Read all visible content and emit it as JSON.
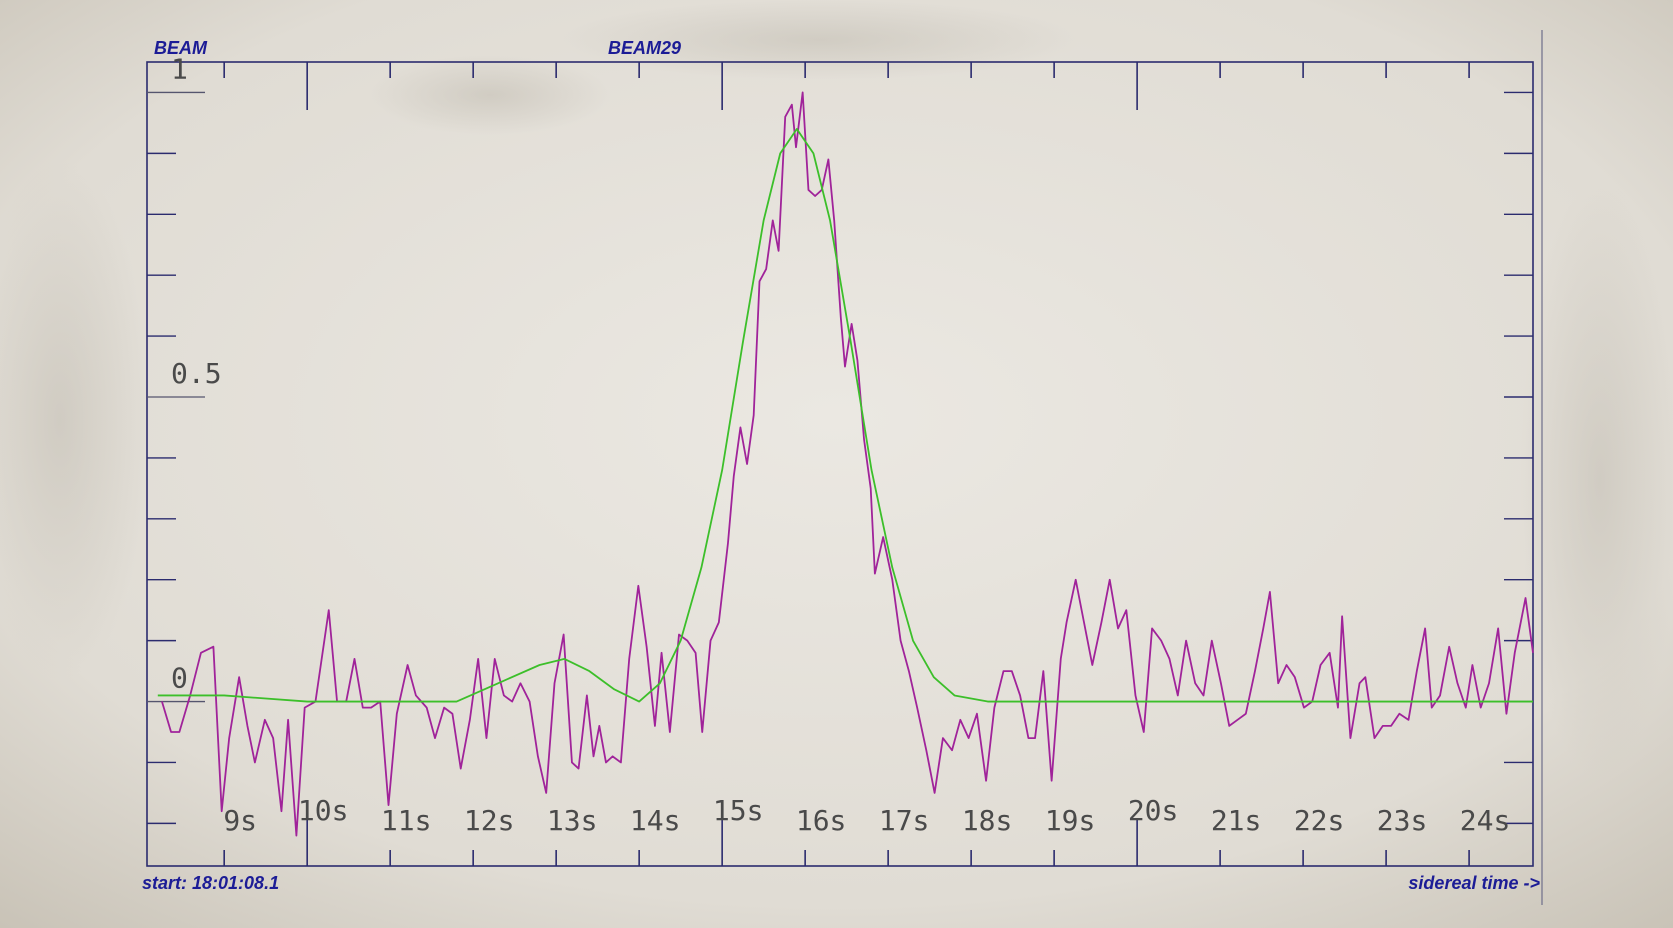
{
  "chart_data": {
    "type": "line",
    "title": "BEAM",
    "subtitle": "BEAM29",
    "start_label": "start: 18:01:08.1",
    "x_label": "sidereal time ->",
    "xlim": [
      8.07,
      24.77
    ],
    "ylim": [
      -0.27,
      1.05
    ],
    "xticks": [
      {
        "value": 9,
        "label": "9s"
      },
      {
        "value": 10,
        "label": "10s"
      },
      {
        "value": 11,
        "label": "11s"
      },
      {
        "value": 12,
        "label": "12s"
      },
      {
        "value": 13,
        "label": "13s"
      },
      {
        "value": 14,
        "label": "14s"
      },
      {
        "value": 15,
        "label": "15s"
      },
      {
        "value": 16,
        "label": "16s"
      },
      {
        "value": 17,
        "label": "17s"
      },
      {
        "value": 18,
        "label": "18s"
      },
      {
        "value": 19,
        "label": "19s"
      },
      {
        "value": 20,
        "label": "20s"
      },
      {
        "value": 21,
        "label": "21s"
      },
      {
        "value": 22,
        "label": "22s"
      },
      {
        "value": 23,
        "label": "23s"
      },
      {
        "value": 24,
        "label": "24s"
      }
    ],
    "yticks": [
      0,
      0.5,
      1
    ],
    "yminorticks": [
      -0.2,
      -0.1,
      0.1,
      0.2,
      0.3,
      0.4,
      0.6,
      0.7,
      0.8,
      0.9
    ],
    "frame_color": "#2b2b6e",
    "series": [
      {
        "color": "#a0239a",
        "x": [
          8.25,
          8.36,
          8.46,
          8.59,
          8.72,
          8.87,
          8.97,
          9.06,
          9.18,
          9.28,
          9.37,
          9.49,
          9.59,
          9.69,
          9.77,
          9.87,
          9.97,
          10.1,
          10.26,
          10.36,
          10.47,
          10.57,
          10.67,
          10.77,
          10.88,
          10.98,
          11.08,
          11.21,
          11.31,
          11.44,
          11.54,
          11.65,
          11.75,
          11.85,
          11.96,
          12.06,
          12.16,
          12.26,
          12.37,
          12.47,
          12.57,
          12.68,
          12.78,
          12.88,
          12.98,
          13.09,
          13.19,
          13.27,
          13.37,
          13.45,
          13.52,
          13.6,
          13.68,
          13.78,
          13.88,
          13.99,
          14.09,
          14.19,
          14.27,
          14.37,
          14.48,
          14.58,
          14.68,
          14.76,
          14.86,
          14.96,
          15.07,
          15.14,
          15.22,
          15.3,
          15.38,
          15.45,
          15.53,
          15.61,
          15.68,
          15.76,
          15.84,
          15.89,
          15.97,
          16.04,
          16.12,
          16.2,
          16.28,
          16.35,
          16.43,
          16.48,
          16.56,
          16.63,
          16.71,
          16.79,
          16.84,
          16.94,
          17.05,
          17.15,
          17.25,
          17.35,
          17.46,
          17.56,
          17.66,
          17.77,
          17.87,
          17.97,
          18.07,
          18.18,
          18.28,
          18.39,
          18.49,
          18.59,
          18.69,
          18.77,
          18.87,
          18.97,
          19.08,
          19.15,
          19.26,
          19.36,
          19.46,
          19.57,
          19.67,
          19.77,
          19.87,
          19.98,
          20.08,
          20.18,
          20.29,
          20.39,
          20.49,
          20.59,
          20.7,
          20.8,
          20.9,
          21.01,
          21.11,
          21.21,
          21.31,
          21.42,
          21.52,
          21.6,
          21.7,
          21.8,
          21.9,
          22.01,
          22.11,
          22.21,
          22.32,
          22.42,
          22.47,
          22.57,
          22.68,
          22.75,
          22.86,
          22.96,
          23.06,
          23.16,
          23.27,
          23.37,
          23.47,
          23.55,
          23.65,
          23.76,
          23.86,
          23.96,
          24.04,
          24.14,
          24.24,
          24.35,
          24.45,
          24.55,
          24.68,
          24.77
        ],
        "values": [
          0,
          -0.05,
          -0.05,
          0.01,
          0.08,
          0.09,
          -0.18,
          -0.06,
          0.04,
          -0.04,
          -0.1,
          -0.03,
          -0.06,
          -0.18,
          -0.03,
          -0.22,
          -0.01,
          0,
          0.15,
          0,
          0,
          0.07,
          -0.01,
          -0.01,
          0,
          -0.17,
          -0.02,
          0.06,
          0.01,
          -0.01,
          -0.06,
          -0.01,
          -0.02,
          -0.11,
          -0.03,
          0.07,
          -0.06,
          0.07,
          0.01,
          0,
          0.03,
          0,
          -0.09,
          -0.15,
          0.03,
          0.11,
          -0.1,
          -0.11,
          0.01,
          -0.09,
          -0.04,
          -0.1,
          -0.09,
          -0.1,
          0.07,
          0.19,
          0.09,
          -0.04,
          0.08,
          -0.05,
          0.11,
          0.1,
          0.08,
          -0.05,
          0.1,
          0.13,
          0.26,
          0.37,
          0.45,
          0.39,
          0.47,
          0.69,
          0.71,
          0.79,
          0.74,
          0.96,
          0.98,
          0.91,
          1.0,
          0.84,
          0.83,
          0.84,
          0.89,
          0.79,
          0.63,
          0.55,
          0.62,
          0.56,
          0.43,
          0.35,
          0.21,
          0.27,
          0.2,
          0.1,
          0.05,
          -0.01,
          -0.08,
          -0.15,
          -0.06,
          -0.08,
          -0.03,
          -0.06,
          -0.02,
          -0.13,
          -0.01,
          0.05,
          0.05,
          0.01,
          -0.06,
          -0.06,
          0.05,
          -0.13,
          0.07,
          0.13,
          0.2,
          0.13,
          0.06,
          0.13,
          0.2,
          0.12,
          0.15,
          0.01,
          -0.05,
          0.12,
          0.1,
          0.07,
          0.01,
          0.1,
          0.03,
          0.01,
          0.1,
          0.03,
          -0.04,
          -0.03,
          -0.02,
          0.05,
          0.12,
          0.18,
          0.03,
          0.06,
          0.04,
          -0.01,
          0,
          0.06,
          0.08,
          -0.01,
          0.14,
          -0.06,
          0.03,
          0.04,
          -0.06,
          -0.04,
          -0.04,
          -0.02,
          -0.03,
          0.05,
          0.12,
          -0.01,
          0.01,
          0.09,
          0.03,
          -0.01,
          0.06,
          -0.01,
          0.03,
          0.12,
          -0.02,
          0.08,
          0.17,
          0.08
        ]
      },
      {
        "color": "#3cbf2a",
        "x": [
          8.2,
          9,
          10,
          11,
          11.8,
          12.3,
          12.8,
          13.1,
          13.4,
          13.7,
          14.0,
          14.25,
          14.5,
          14.75,
          15.0,
          15.25,
          15.5,
          15.7,
          15.9,
          16.1,
          16.3,
          16.55,
          16.8,
          17.05,
          17.3,
          17.55,
          17.8,
          18.2,
          19,
          20,
          21,
          22,
          23,
          24,
          24.77
        ],
        "values": [
          0.01,
          0.01,
          0,
          0,
          0,
          0.03,
          0.06,
          0.07,
          0.05,
          0.02,
          0,
          0.03,
          0.1,
          0.22,
          0.38,
          0.59,
          0.79,
          0.9,
          0.94,
          0.9,
          0.79,
          0.59,
          0.38,
          0.22,
          0.1,
          0.04,
          0.01,
          0,
          0,
          0,
          0,
          0,
          0,
          0,
          0
        ]
      }
    ]
  }
}
